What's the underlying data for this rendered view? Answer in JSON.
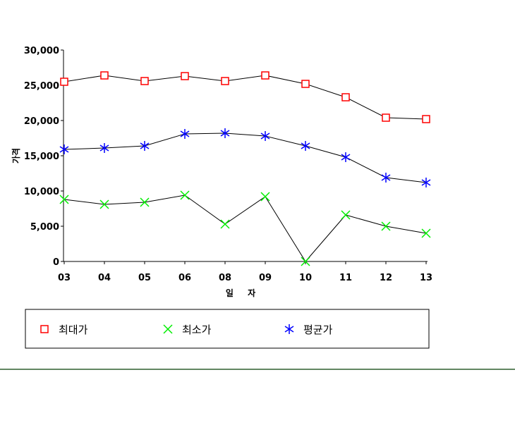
{
  "chart_data": {
    "type": "line",
    "title": "",
    "xlabel": "일 자",
    "ylabel": "가격",
    "categories": [
      "03",
      "04",
      "05",
      "06",
      "08",
      "09",
      "10",
      "11",
      "12",
      "13"
    ],
    "ylim": [
      0,
      30000
    ],
    "yticks": [
      0,
      5000,
      10000,
      15000,
      20000,
      25000,
      30000
    ],
    "ytick_labels": [
      "0",
      "5,000",
      "10,000",
      "15,000",
      "20,000",
      "25,000",
      "30,000"
    ],
    "grid": false,
    "legend_position": "bottom",
    "series": [
      {
        "name": "최대가",
        "marker": "square",
        "color": "#ff0000",
        "values": [
          25500,
          26400,
          25600,
          26300,
          25600,
          26400,
          25200,
          23300,
          20400,
          20200
        ]
      },
      {
        "name": "최소가",
        "marker": "x",
        "color": "#00ee00",
        "values": [
          8800,
          8100,
          8400,
          9400,
          5300,
          9200,
          0,
          6600,
          5000,
          4000
        ]
      },
      {
        "name": "평균가",
        "marker": "asterisk",
        "color": "#0000ff",
        "values": [
          15900,
          16100,
          16400,
          18100,
          18200,
          17800,
          16400,
          14800,
          11900,
          11200
        ]
      }
    ]
  }
}
